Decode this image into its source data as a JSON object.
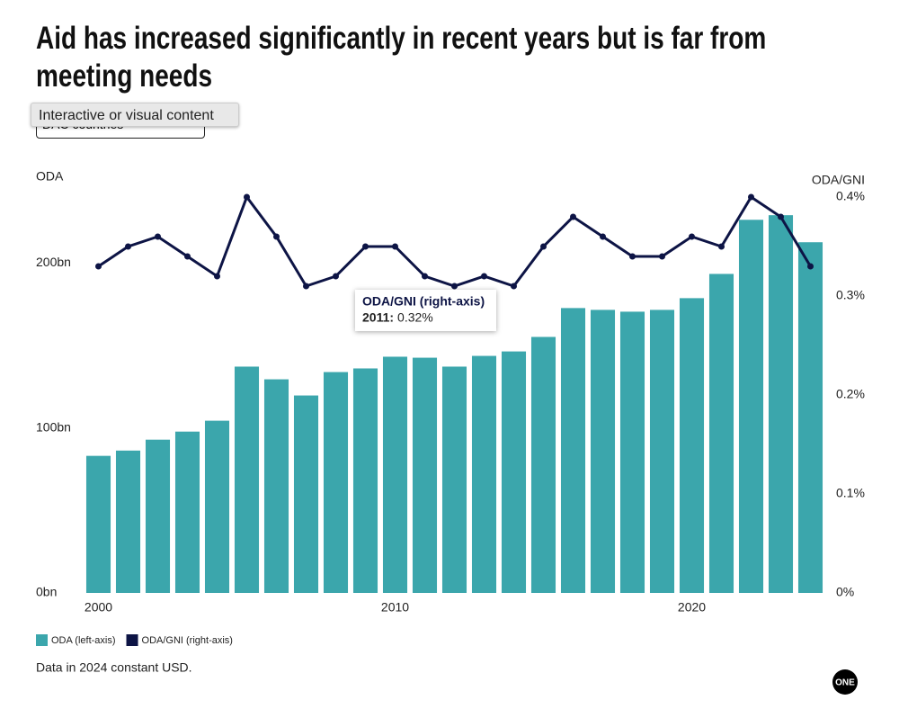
{
  "chart_data": {
    "type": "bar_line",
    "title": "Aid has increased significantly in recent years but is far from meeting needs",
    "dropdown": "DAC countries",
    "overlay": "Interactive or visual content",
    "y_label": "ODA",
    "y2_label": "ODA/GNI",
    "x": [
      2000,
      2001,
      2002,
      2003,
      2004,
      2005,
      2006,
      2007,
      2008,
      2009,
      2010,
      2011,
      2012,
      2013,
      2014,
      2015,
      2016,
      2017,
      2018,
      2019,
      2020,
      2021,
      2022,
      2023,
      2024
    ],
    "xlim": [
      1999.5,
      2024.5
    ],
    "xticks": [
      2000,
      2010,
      2020
    ],
    "ylim": [
      0,
      240
    ],
    "yticks": [
      {
        "value": 0,
        "label": "0bn"
      },
      {
        "value": 100,
        "label": "100bn"
      },
      {
        "value": 200,
        "label": "200bn"
      }
    ],
    "y2lim": [
      0,
      0.4
    ],
    "y2ticks": [
      {
        "value": 0,
        "label": "0%"
      },
      {
        "value": 0.1,
        "label": "0.1%"
      },
      {
        "value": 0.2,
        "label": "0.2%"
      },
      {
        "value": 0.3,
        "label": "0.3%"
      },
      {
        "value": 0.4,
        "label": "0.4%"
      }
    ],
    "series": [
      {
        "name": "ODA (left-axis)",
        "type": "bar",
        "color": "#3ba6ac",
        "values": [
          83.1,
          86.3,
          92.9,
          97.8,
          104.4,
          137.2,
          129.5,
          119.7,
          133.9,
          136.1,
          143.2,
          142.6,
          137.2,
          143.7,
          146.4,
          155.2,
          172.7,
          171.6,
          170.5,
          171.6,
          178.7,
          193.4,
          226.2,
          229.0,
          212.6
        ]
      },
      {
        "name": "ODA/GNI (right-axis)",
        "type": "line",
        "axis": "y2",
        "color": "#0d1445",
        "values": [
          0.33,
          0.35,
          0.36,
          0.34,
          0.32,
          0.4,
          0.36,
          0.31,
          0.32,
          0.35,
          0.35,
          0.32,
          0.31,
          0.32,
          0.31,
          0.35,
          0.38,
          0.36,
          0.34,
          0.34,
          0.36,
          0.35,
          0.4,
          0.38,
          0.33
        ]
      }
    ],
    "tooltip": {
      "title": "ODA/GNI (right-axis)",
      "label": "2011:",
      "value": "0.32%"
    },
    "note": "Data in 2024 constant USD.",
    "logo": "ONE"
  }
}
